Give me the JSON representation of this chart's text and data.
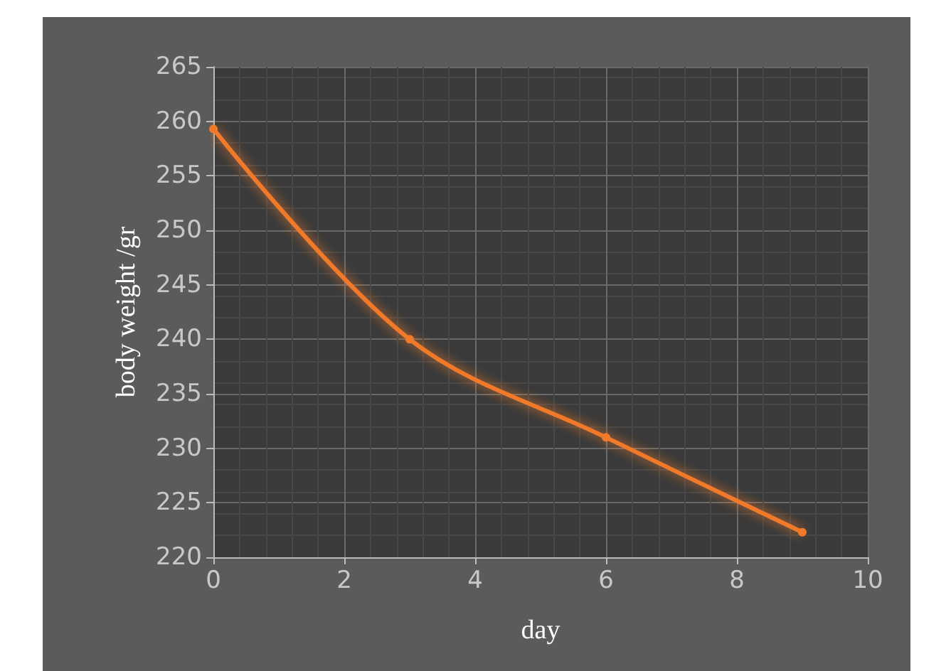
{
  "chart_data": {
    "type": "line",
    "xlabel": "day",
    "ylabel": "body weight /gr",
    "x": [
      0,
      3,
      6,
      9
    ],
    "series": [
      {
        "color": "#f07a2a",
        "values": [
          259.3,
          240,
          231,
          222.3
        ]
      }
    ],
    "xlim": [
      0,
      10
    ],
    "xticks": [
      0,
      2,
      4,
      6,
      8,
      10
    ],
    "ylim": [
      220,
      265
    ],
    "yticks": [
      220,
      225,
      230,
      235,
      240,
      245,
      250,
      255,
      260,
      265
    ],
    "grid": true,
    "marker": "circle",
    "line_style": "solid"
  }
}
